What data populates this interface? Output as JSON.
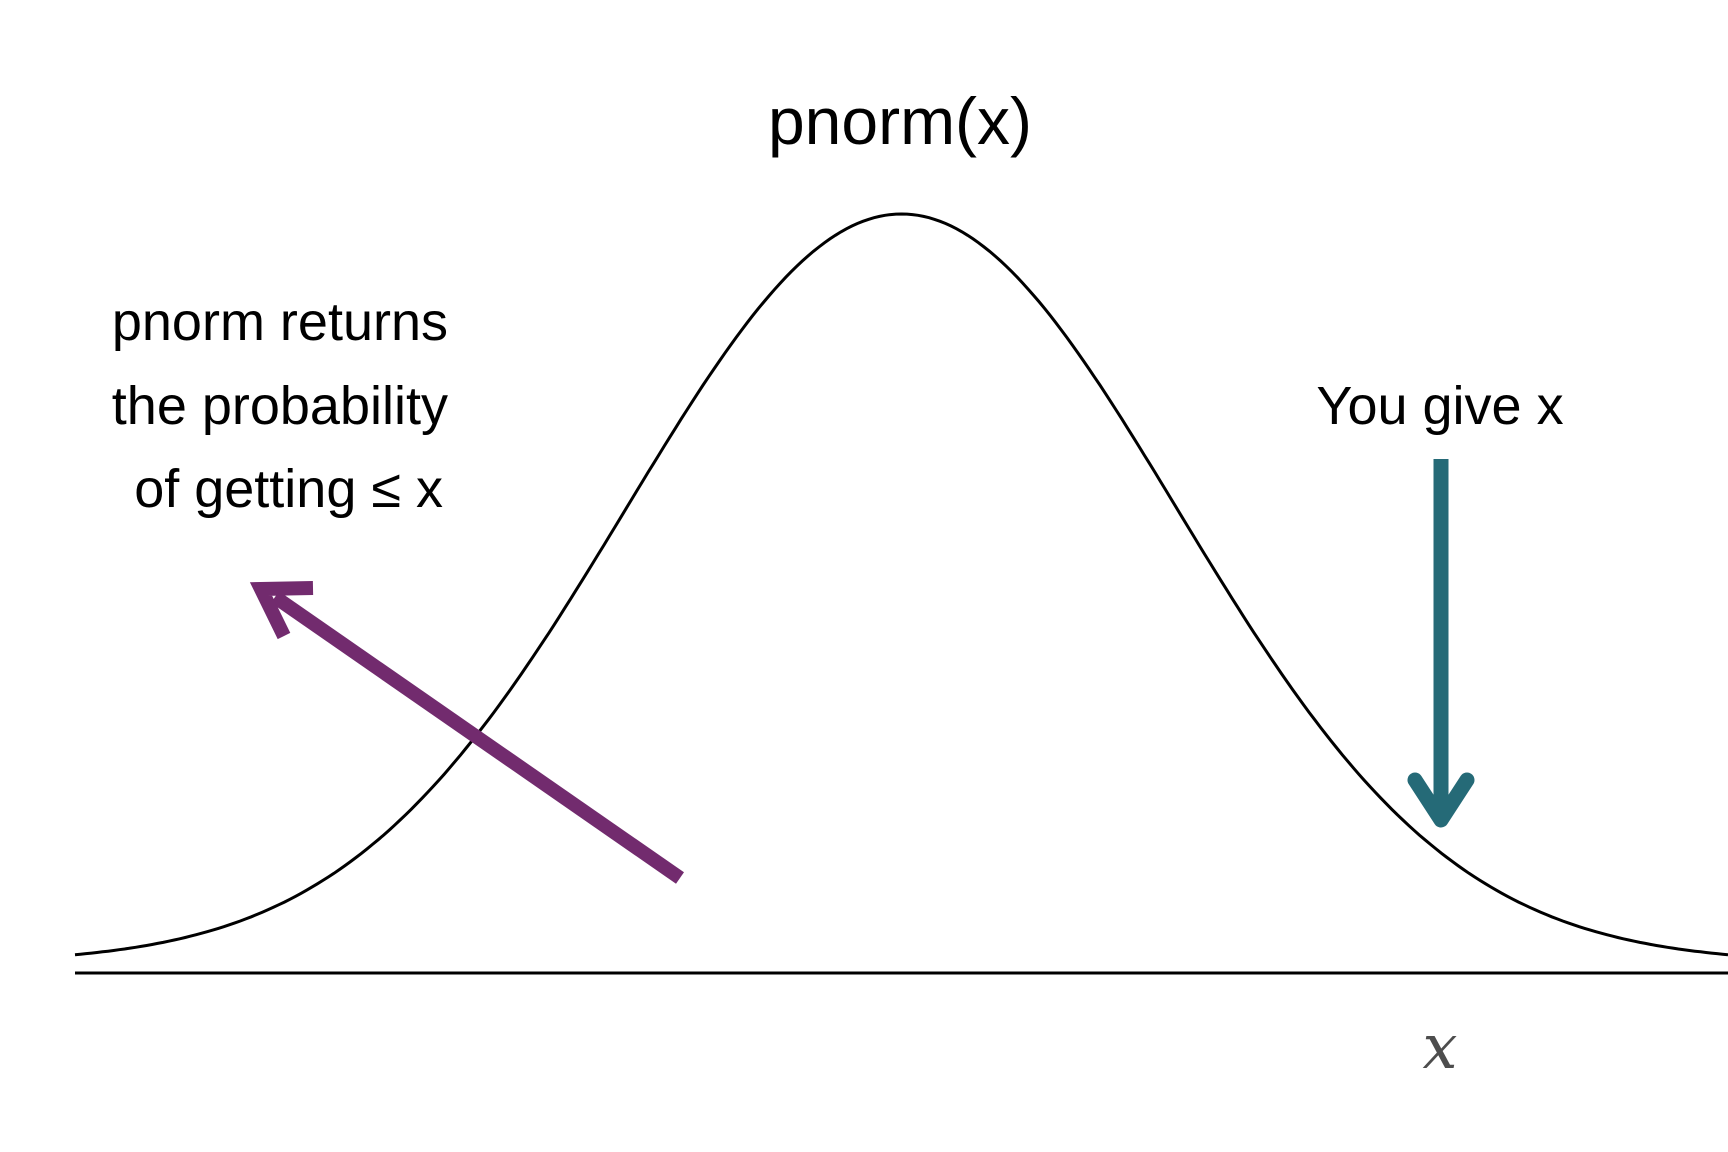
{
  "title": "pnorm(x)",
  "left_note": {
    "lines": [
      "pnorm returns",
      "the probability",
      "of getting ≤ x"
    ]
  },
  "right_note": {
    "text": "You give x"
  },
  "axis": {
    "x_label": "x"
  },
  "colors": {
    "curve": "#000000",
    "axis": "#000000",
    "probability_arrow": "#722b6e",
    "input_arrow": "#256a77",
    "x_label": "#4d4d4d"
  },
  "chart_data": {
    "type": "line",
    "title": "pnorm(x)",
    "series": [
      {
        "name": "",
        "distribution": "standard normal density",
        "mean": 0,
        "sd": 1
      }
    ],
    "xlim": [
      -3,
      3
    ],
    "grid": false,
    "x_marked": 1.96
  }
}
